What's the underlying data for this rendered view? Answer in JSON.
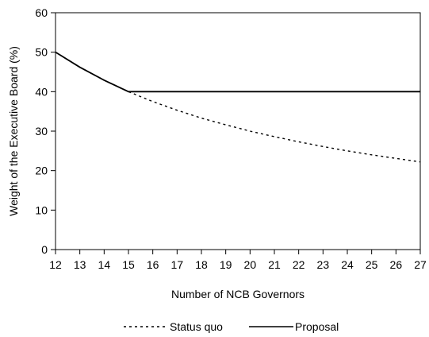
{
  "chart_data": {
    "type": "line",
    "title": "",
    "xlabel": "Number of NCB Governors",
    "ylabel": "Weight of the Executive Board (%)",
    "xlim": [
      12,
      27
    ],
    "ylim": [
      0,
      60
    ],
    "xticks": [
      12,
      13,
      14,
      15,
      16,
      17,
      18,
      19,
      20,
      21,
      22,
      23,
      24,
      25,
      26,
      27
    ],
    "yticks": [
      0,
      10,
      20,
      30,
      40,
      50,
      60
    ],
    "grid": false,
    "legend_position": "bottom",
    "x": [
      12,
      13,
      14,
      15,
      16,
      17,
      18,
      19,
      20,
      21,
      22,
      23,
      24,
      25,
      26,
      27
    ],
    "series": [
      {
        "name": "Status quo",
        "style": "dotted",
        "color": "#000000",
        "values": [
          50,
          46.2,
          42.9,
          40,
          37.5,
          35.3,
          33.3,
          31.6,
          30,
          28.6,
          27.3,
          26.1,
          25,
          24,
          23.1,
          22.2
        ]
      },
      {
        "name": "Proposal",
        "style": "solid",
        "color": "#000000",
        "values": [
          50,
          46.2,
          42.9,
          40,
          40,
          40,
          40,
          40,
          40,
          40,
          40,
          40,
          40,
          40,
          40,
          40
        ]
      }
    ]
  }
}
